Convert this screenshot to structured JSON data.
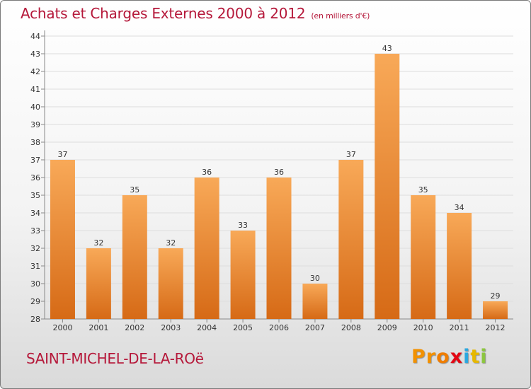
{
  "header": {
    "title": "Achats et Charges Externes 2000 à 2012",
    "unit": "(en milliers d'€)"
  },
  "footer": {
    "commune": "SAINT-MICHEL-DE-LA-ROë",
    "brand": "Proxiti"
  },
  "colors": {
    "title": "#b5183a",
    "bar_light": "#f8a958",
    "bar_dark": "#d66a16",
    "brand": [
      "#f29100",
      "#f29100",
      "#ef7d00",
      "#e30613",
      "#2aa7df",
      "#e6b800",
      "#8cc63f"
    ]
  },
  "chart_data": {
    "type": "bar",
    "categories": [
      "2000",
      "2001",
      "2002",
      "2003",
      "2004",
      "2005",
      "2006",
      "2007",
      "2008",
      "2009",
      "2010",
      "2011",
      "2012"
    ],
    "values": [
      37,
      32,
      35,
      32,
      36,
      33,
      36,
      30,
      37,
      43,
      35,
      34,
      29
    ],
    "data_labels": [
      "37",
      "32",
      "35",
      "32",
      "36",
      "33",
      "36",
      "30",
      "37",
      "43",
      "35",
      "34",
      "29"
    ],
    "ylim": [
      28,
      44
    ],
    "yticks": [
      28,
      29,
      30,
      31,
      32,
      33,
      34,
      35,
      36,
      37,
      38,
      39,
      40,
      41,
      42,
      43,
      44
    ],
    "grid": true,
    "legend": "none"
  }
}
